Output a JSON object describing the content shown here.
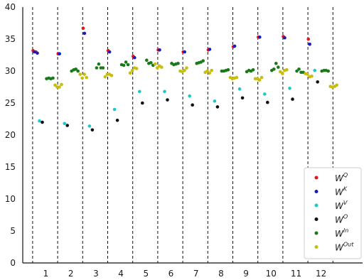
{
  "chart_data": {
    "type": "scatter",
    "title": "",
    "xlabel": "",
    "ylabel": "",
    "ylim": [
      0,
      40
    ],
    "yticks": [
      0,
      5,
      10,
      15,
      20,
      25,
      30,
      35,
      40
    ],
    "categories": [
      "1",
      "2",
      "3",
      "4",
      "5",
      "6",
      "7",
      "8",
      "9",
      "10",
      "11",
      "12"
    ],
    "grid": false,
    "group_separators": "dashed",
    "legend_position": "bottom-right",
    "series": [
      {
        "name": "W",
        "sup": "Q",
        "color": "#e8141b",
        "values": [
          [
            33.2,
            33.0
          ],
          [
            32.7
          ],
          [
            36.7
          ],
          [
            33.2
          ],
          [
            32.3
          ],
          [
            33.3
          ],
          [
            33.0
          ],
          [
            33.3
          ],
          [
            33.8
          ],
          [
            35.3
          ],
          [
            35.4
          ],
          [
            35.0
          ]
        ]
      },
      {
        "name": "W",
        "sup": "K",
        "color": "#1b1bbf",
        "values": [
          [
            33.0,
            32.8
          ],
          [
            32.7
          ],
          [
            35.9
          ],
          [
            33.0
          ],
          [
            32.1
          ],
          [
            33.3
          ],
          [
            33.0
          ],
          [
            33.4
          ],
          [
            33.9
          ],
          [
            35.3
          ],
          [
            35.2
          ],
          [
            34.2
          ]
        ]
      },
      {
        "name": "W",
        "sup": "V",
        "color": "#1fc8c8",
        "values": [
          [
            22.2
          ],
          [
            21.8
          ],
          [
            21.4
          ],
          [
            24.0
          ],
          [
            26.8
          ],
          [
            26.8
          ],
          [
            26.1
          ],
          [
            25.3
          ],
          [
            27.2
          ],
          [
            26.4
          ],
          [
            27.3
          ],
          [
            30.1
          ]
        ]
      },
      {
        "name": "W",
        "sup": "O",
        "color": "#111111",
        "values": [
          [
            22.0
          ],
          [
            21.5
          ],
          [
            20.8
          ],
          [
            22.3
          ],
          [
            25.0
          ],
          [
            25.5
          ],
          [
            24.7
          ],
          [
            24.4
          ],
          [
            25.8
          ],
          [
            25.1
          ],
          [
            25.6
          ],
          [
            28.3
          ]
        ]
      },
      {
        "name": "W",
        "sup": "In",
        "color": "#1a7a1a",
        "values": [
          [
            28.8,
            28.9,
            28.8,
            28.9
          ],
          [
            30.0,
            30.2,
            30.3,
            30.0
          ],
          [
            30.5,
            31.1,
            30.5,
            30.5
          ],
          [
            31.0,
            30.9,
            31.4,
            31.0
          ],
          [
            31.7,
            31.2,
            31.3,
            30.9
          ],
          [
            31.2,
            31.0,
            31.1,
            31.2
          ],
          [
            31.2,
            31.3,
            31.4,
            31.6
          ],
          [
            30.0,
            30.0,
            30.1,
            30.2
          ],
          [
            29.9,
            30.1,
            30.0,
            30.2
          ],
          [
            30.1,
            30.3,
            31.2,
            30.6
          ],
          [
            30.0,
            30.3,
            29.8,
            29.8
          ],
          [
            30.0,
            30.1,
            30.1,
            30.0
          ]
        ]
      },
      {
        "name": "W",
        "sup": "Out",
        "color": "#c7bd0a",
        "values": [
          [
            27.8,
            27.5,
            27.5,
            27.9
          ],
          [
            29.5,
            28.9,
            29.5,
            29.0
          ],
          [
            29.1,
            29.5,
            29.5,
            29.3
          ],
          [
            29.7,
            30.1,
            30.5,
            30.4
          ],
          [
            31.1,
            30.5,
            30.8,
            30.6
          ],
          [
            30.0,
            29.9,
            30.1,
            30.5
          ],
          [
            29.8,
            30.0,
            29.7,
            30.1
          ],
          [
            29.0,
            28.8,
            28.9,
            29.0
          ],
          [
            28.8,
            28.8,
            28.6,
            29.0
          ],
          [
            29.9,
            29.6,
            30.1,
            30.2
          ],
          [
            29.6,
            29.5,
            29.1,
            29.2
          ],
          [
            27.6,
            27.5,
            27.6,
            27.8
          ]
        ]
      }
    ]
  }
}
